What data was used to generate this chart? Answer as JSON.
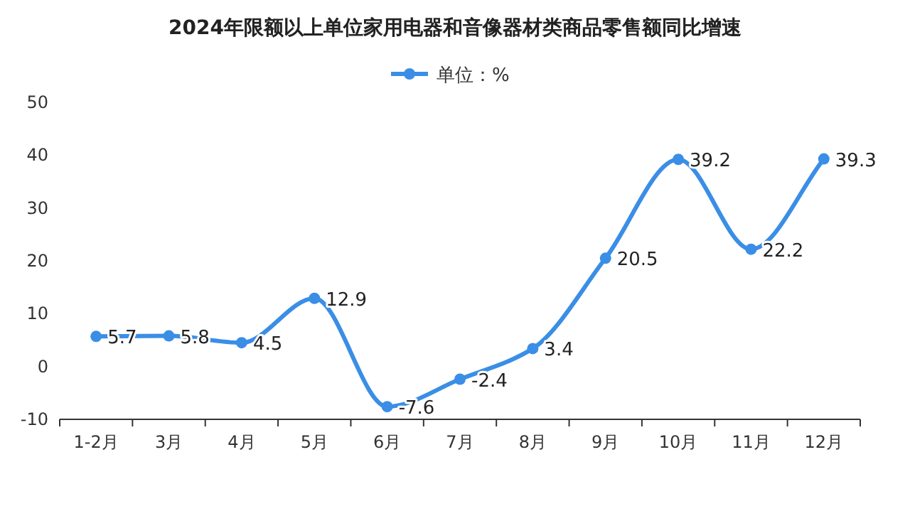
{
  "chart_data": {
    "type": "line",
    "title": "2024年限额以上单位家用电器和音像器材类商品零售额同比增速",
    "categories": [
      "1-2月",
      "3月",
      "4月",
      "5月",
      "6月",
      "7月",
      "8月",
      "9月",
      "10月",
      "11月",
      "12月"
    ],
    "series": [
      {
        "name": "单位：%",
        "color": "#3a8ee6",
        "values": [
          5.7,
          5.8,
          4.5,
          12.9,
          -7.6,
          -2.4,
          3.4,
          20.5,
          39.2,
          22.2,
          39.3
        ]
      }
    ],
    "ylim": [
      -10,
      50
    ],
    "yticks": [
      -10,
      0,
      10,
      20,
      30,
      40,
      50
    ],
    "grid": false,
    "legend": "top",
    "marker": "circle",
    "line_style": "solid",
    "data_labels": true
  }
}
